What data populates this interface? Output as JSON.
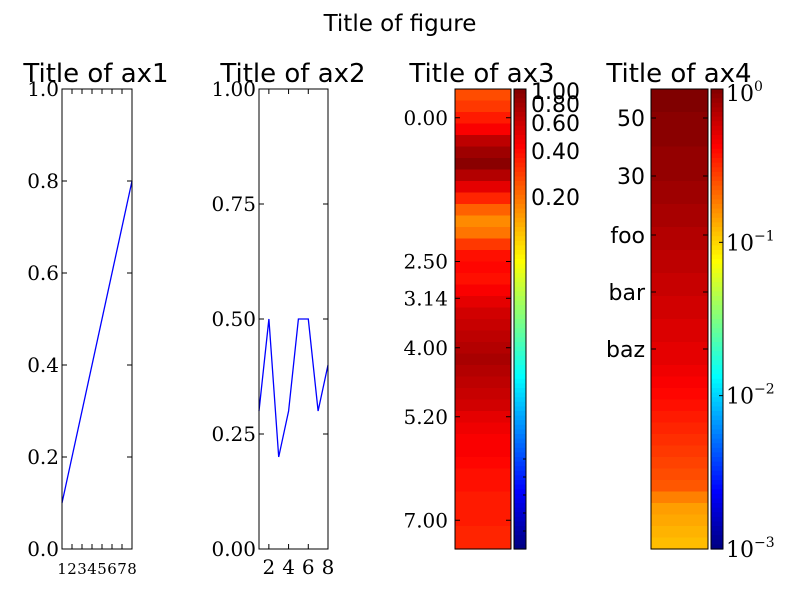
{
  "figure": {
    "title": "Title of figure"
  },
  "chart_data": [
    {
      "type": "line",
      "title": "Title of ax1",
      "x": [
        1,
        8
      ],
      "series": [
        {
          "values": [
            0.1,
            0.8
          ],
          "color": "#0000ff"
        }
      ],
      "xlim": [
        1,
        8
      ],
      "ylim": [
        0.0,
        1.0
      ],
      "xticks": [
        1,
        2,
        3,
        4,
        5,
        6,
        7,
        8
      ],
      "xtick_labels": [
        "1",
        "2",
        "3",
        "4",
        "5",
        "6",
        "7",
        "8"
      ],
      "yticks": [
        0.0,
        0.2,
        0.4,
        0.6,
        0.8,
        1.0
      ],
      "ytick_labels": [
        "0.0",
        "0.2",
        "0.4",
        "0.6",
        "0.8",
        "1.0"
      ]
    },
    {
      "type": "line",
      "title": "Title of ax2",
      "x": [
        1,
        2,
        3,
        4,
        5,
        6,
        7,
        8
      ],
      "series": [
        {
          "values": [
            0.3,
            0.5,
            0.2,
            0.3,
            0.5,
            0.5,
            0.3,
            0.4
          ],
          "color": "#0000ff"
        }
      ],
      "xlim": [
        1,
        8
      ],
      "ylim": [
        0.0,
        1.0
      ],
      "xticks": [
        2,
        4,
        6,
        8
      ],
      "xtick_labels": [
        "2",
        "4",
        "6",
        "8"
      ],
      "yticks": [
        0.0,
        0.25,
        0.5,
        0.75,
        1.0
      ],
      "ytick_labels": [
        "0.00",
        "0.25",
        "0.50",
        "0.75",
        "1.00"
      ]
    },
    {
      "type": "heatmap",
      "title": "Title of ax3",
      "colormap": "jet",
      "ylim": [
        7.5,
        -0.5
      ],
      "values": [
        0.8,
        0.82,
        0.85,
        0.88,
        0.94,
        0.97,
        0.99,
        0.95,
        0.9,
        0.84,
        0.78,
        0.74,
        0.76,
        0.82,
        0.86,
        0.87,
        0.86,
        0.88,
        0.9,
        0.92,
        0.93,
        0.94,
        0.95,
        0.96,
        0.95,
        0.94,
        0.93,
        0.92,
        0.9,
        0.89,
        0.88,
        0.88,
        0.87,
        0.86,
        0.86,
        0.85,
        0.85,
        0.85,
        0.84,
        0.84
      ],
      "yticks": [
        0.0,
        2.5,
        3.14,
        4.0,
        5.2,
        7.0
      ],
      "ytick_labels": [
        "0.00",
        "2.50",
        "3.14",
        "4.00",
        "5.20",
        "7.00"
      ],
      "colorbar": {
        "scale": "linear",
        "range": [
          0.0,
          1.0
        ],
        "ticks": [
          0.2,
          0.4,
          0.6,
          0.8,
          1.0
        ],
        "tick_labels": [
          "0.20",
          "0.40",
          "0.60",
          "0.80",
          "1.00"
        ]
      }
    },
    {
      "type": "heatmap",
      "title": "Title of ax4",
      "colormap": "jet",
      "values": [
        0.69,
        0.7,
        0.71,
        0.72,
        0.75,
        0.79,
        0.8,
        0.81,
        0.82,
        0.83,
        0.84,
        0.85,
        0.86,
        0.87,
        0.88,
        0.89,
        0.9,
        0.9,
        0.91,
        0.91,
        0.92,
        0.92,
        0.93,
        0.93,
        0.94,
        0.94,
        0.95,
        0.95,
        0.96,
        0.96,
        0.97,
        0.97,
        0.98,
        0.98,
        0.98,
        0.99,
        0.99,
        0.99,
        1.0,
        1.0
      ],
      "ytick_labels": [
        "50",
        "30",
        "foo",
        "bar",
        "baz"
      ],
      "colorbar": {
        "scale": "log",
        "range": [
          0.001,
          1
        ],
        "ticks": [
          0.001,
          0.01,
          0.1,
          1
        ],
        "tick_labels": [
          "10",
          "10",
          "10",
          "10"
        ],
        "tick_exponents": [
          "−3",
          "−2",
          "−1",
          "0"
        ]
      }
    }
  ]
}
